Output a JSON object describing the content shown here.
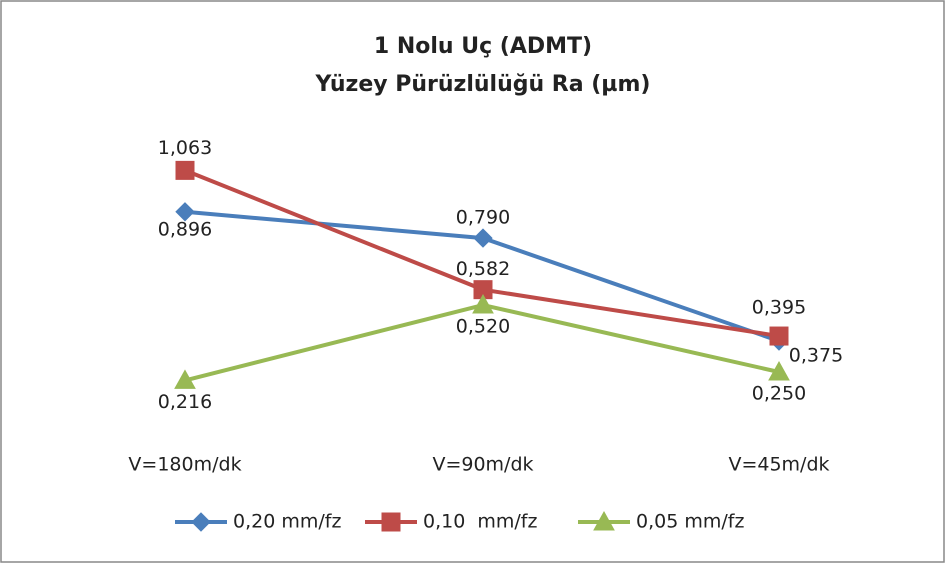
{
  "chart_data": {
    "type": "line",
    "title": [
      "1 Nolu Uç (ADMT)",
      "Yüzey Pürüzlülüğü Ra (µm)"
    ],
    "categories": [
      "V=180m/dk",
      "V=90m/dk",
      "V=45m/dk"
    ],
    "series": [
      {
        "name": "0,20 mm/fz",
        "color": "#4a7ebb",
        "marker": "diamond",
        "values": [
          0.896,
          0.79,
          0.375
        ],
        "value_labels": [
          "0,896",
          "0,790",
          "0,375"
        ]
      },
      {
        "name": "0,10  mm/fz",
        "color": "#be4b48",
        "marker": "square",
        "values": [
          1.063,
          0.582,
          0.395
        ],
        "value_labels": [
          "1,063",
          "0,582",
          "0,395"
        ]
      },
      {
        "name": "0,05 mm/fz",
        "color": "#98b954",
        "marker": "triangle",
        "values": [
          0.216,
          0.52,
          0.25
        ],
        "value_labels": [
          "0,216",
          "0,520",
          "0,250"
        ]
      }
    ],
    "legend": "bottom"
  }
}
